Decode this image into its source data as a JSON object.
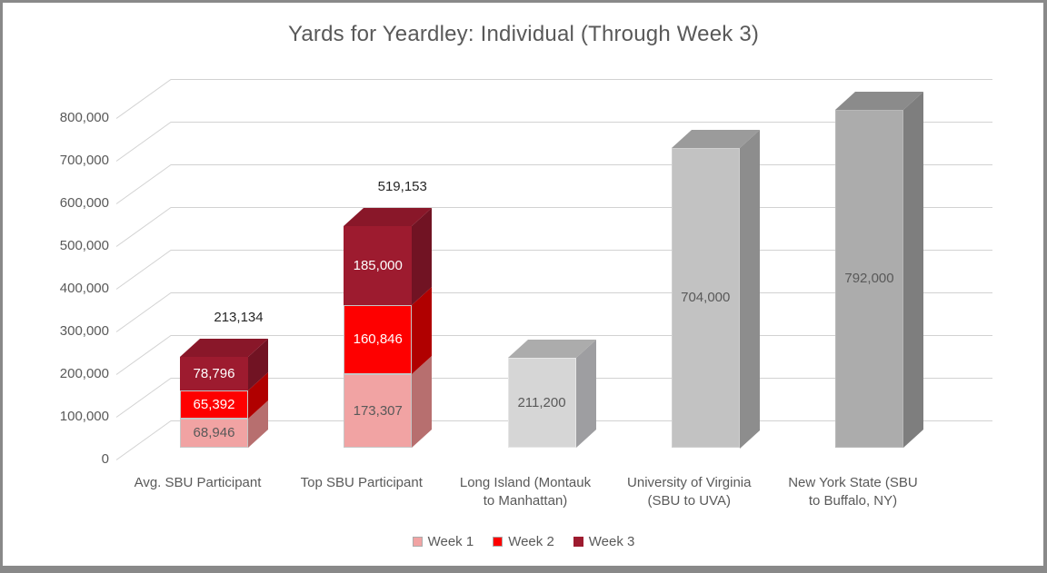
{
  "title": "Yards for Yeardley: Individual (Through Week 3)",
  "colors": {
    "frame_border": "#898989",
    "background": "#ffffff",
    "title_text": "#595959",
    "axis_text": "#595959",
    "gridline": "#d2d2d2",
    "total_label_text": "#262626"
  },
  "chart_data": {
    "type": "bar",
    "subtype": "3d-stacked-column",
    "title": "Yards for Yeardley: Individual (Through Week 3)",
    "xlabel": "",
    "ylabel": "",
    "ylim": [
      0,
      800000
    ],
    "ytick_interval": 100000,
    "ytick_labels": [
      "0",
      "100,000",
      "200,000",
      "300,000",
      "400,000",
      "500,000",
      "600,000",
      "700,000",
      "800,000"
    ],
    "grid": true,
    "legend_position": "bottom",
    "categories": [
      "Avg. SBU Participant",
      "Top SBU Participant",
      "Long Island (Montauk to Manhattan)",
      "University of Virginia (SBU to UVA)",
      "New York State (SBU to Buffalo, NY)"
    ],
    "series": [
      {
        "name": "Week 1",
        "palette": "week1",
        "values": [
          68946,
          173307,
          null,
          null,
          null
        ]
      },
      {
        "name": "Week 2",
        "palette": "week2",
        "values": [
          65392,
          160846,
          null,
          null,
          null
        ]
      },
      {
        "name": "Week 3",
        "palette": "week3",
        "values": [
          78796,
          185000,
          null,
          null,
          null
        ]
      }
    ],
    "palettes": {
      "week1": {
        "front": "#F1A3A3",
        "side": "#B76F6F",
        "top": "#D79090",
        "text": "#595959",
        "border": "#C6C6C6"
      },
      "week2": {
        "front": "#FE0000",
        "side": "#B00000",
        "top": "#D40000",
        "text": "#FFFFFF",
        "border": "#C6C6C6"
      },
      "week3": {
        "front": "#9D1B2F",
        "side": "#711323",
        "top": "#891729",
        "text": "#FFFFFF",
        "border": ""
      },
      "gray-light": {
        "front": "#D6D6D6",
        "side": "#9E9EA1",
        "top": "#ACACAC",
        "text": "#595959",
        "border": "#E6E6E6"
      },
      "gray-mid": {
        "front": "#C2C2C2",
        "side": "#8D8D8D",
        "top": "#9B9B9B",
        "text": "#595959",
        "border": "#CFCFCF"
      },
      "gray-dark": {
        "front": "#ACACAC",
        "side": "#7E7E7E",
        "top": "#8B8B8B",
        "text": "#595959",
        "border": "#B8B8B8"
      }
    },
    "bars": [
      {
        "category": "Avg. SBU Participant",
        "label_lines": [
          "Avg. SBU Participant"
        ],
        "segments": [
          {
            "series": "Week 1",
            "palette": "week1",
            "value": 68946,
            "label": "68,946"
          },
          {
            "series": "Week 2",
            "palette": "week2",
            "value": 65392,
            "label": "65,392"
          },
          {
            "series": "Week 3",
            "palette": "week3",
            "value": 78796,
            "label": "78,796"
          }
        ],
        "total": 213134,
        "total_label": "213,134",
        "show_total": true
      },
      {
        "category": "Top SBU Participant",
        "label_lines": [
          "Top SBU Participant"
        ],
        "segments": [
          {
            "series": "Week 1",
            "palette": "week1",
            "value": 173307,
            "label": "173,307"
          },
          {
            "series": "Week 2",
            "palette": "week2",
            "value": 160846,
            "label": "160,846"
          },
          {
            "series": "Week 3",
            "palette": "week3",
            "value": 185000,
            "label": "185,000"
          }
        ],
        "total": 519153,
        "total_label": "519,153",
        "show_total": true
      },
      {
        "category": "Long Island (Montauk to Manhattan)",
        "label_lines": [
          "Long Island (Montauk",
          "to Manhattan)"
        ],
        "segments": [
          {
            "series": null,
            "palette": "gray-light",
            "value": 211200,
            "label": "211,200"
          }
        ],
        "total": 211200,
        "total_label": "211,200",
        "show_total": false
      },
      {
        "category": "University of Virginia (SBU to UVA)",
        "label_lines": [
          "University of Virginia",
          "(SBU to UVA)"
        ],
        "segments": [
          {
            "series": null,
            "palette": "gray-mid",
            "value": 704000,
            "label": "704,000"
          }
        ],
        "total": 704000,
        "total_label": "704,000",
        "show_total": false
      },
      {
        "category": "New York State (SBU to Buffalo, NY)",
        "label_lines": [
          "New York State (SBU",
          "to Buffalo, NY)"
        ],
        "segments": [
          {
            "series": null,
            "palette": "gray-dark",
            "value": 792000,
            "label": "792,000"
          }
        ],
        "total": 792000,
        "total_label": "792,000",
        "show_total": false
      }
    ]
  },
  "legend": {
    "items": [
      {
        "label": "Week 1",
        "palette": "week1"
      },
      {
        "label": "Week 2",
        "palette": "week2"
      },
      {
        "label": "Week 3",
        "palette": "week3"
      }
    ]
  }
}
